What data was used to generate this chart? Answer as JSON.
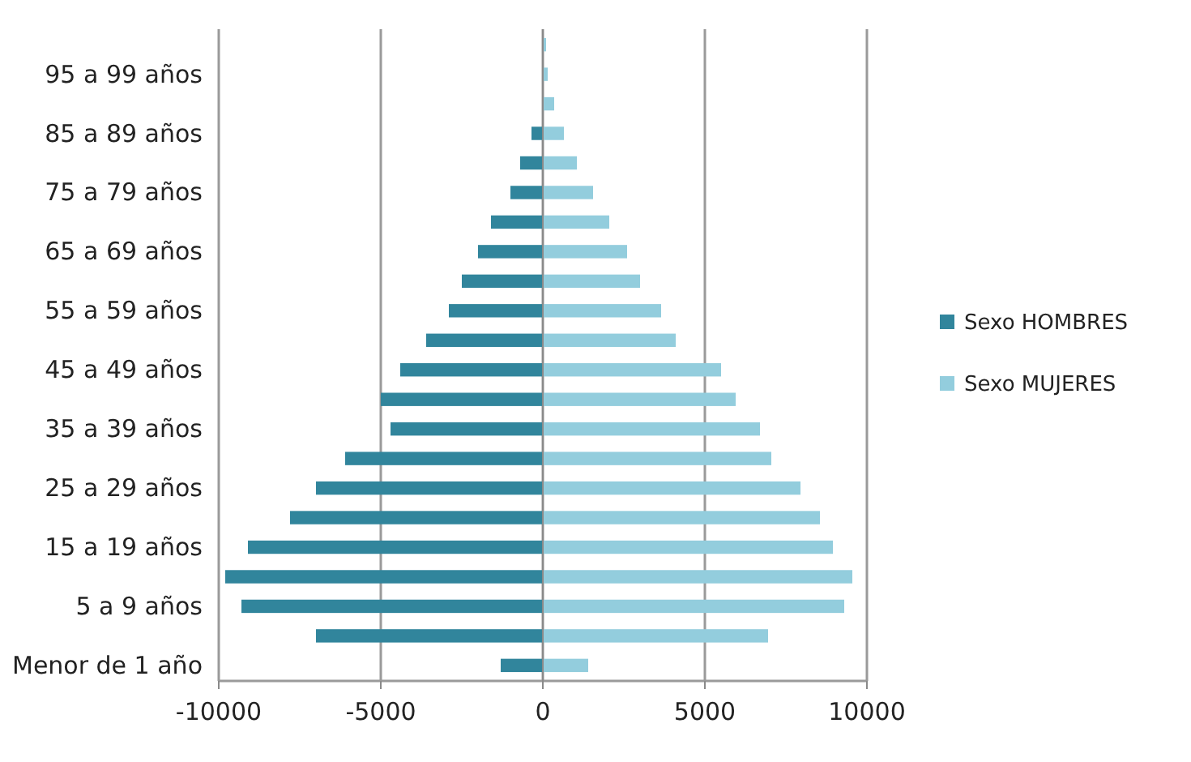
{
  "chart_data": {
    "type": "bar",
    "orientation": "horizontal",
    "stacked": true,
    "categories": [
      null,
      "95 a 99 años",
      null,
      "85 a 89 años",
      null,
      "75 a 79 años",
      null,
      "65 a 69 años",
      null,
      "55 a 59 años",
      null,
      "45 a 49 años",
      null,
      "35 a 39 años",
      null,
      "25 a 29 años",
      null,
      "15 a 19 años",
      null,
      "5 a 9 años",
      null,
      "Menor de 1 año"
    ],
    "series": [
      {
        "name": "Sexo HOMBRES",
        "color": "#31859c",
        "values": [
          0,
          0,
          0,
          -350,
          -700,
          -1000,
          -1600,
          -2000,
          -2500,
          -2900,
          -3600,
          -4400,
          -5000,
          -4700,
          -6100,
          -7000,
          -7800,
          -9100,
          -9800,
          -9300,
          -7000,
          -1300
        ]
      },
      {
        "name": "Sexo MUJERES",
        "color": "#93cddd",
        "values": [
          100,
          150,
          350,
          650,
          1050,
          1550,
          2050,
          2600,
          3000,
          3650,
          4100,
          5500,
          5950,
          6700,
          7050,
          7950,
          8550,
          8950,
          9550,
          9300,
          6950,
          1400
        ]
      }
    ],
    "xlim": [
      -10000,
      10000
    ],
    "xticks": [
      -10000,
      -5000,
      0,
      5000,
      10000
    ],
    "grid": "x",
    "legend": "right"
  }
}
